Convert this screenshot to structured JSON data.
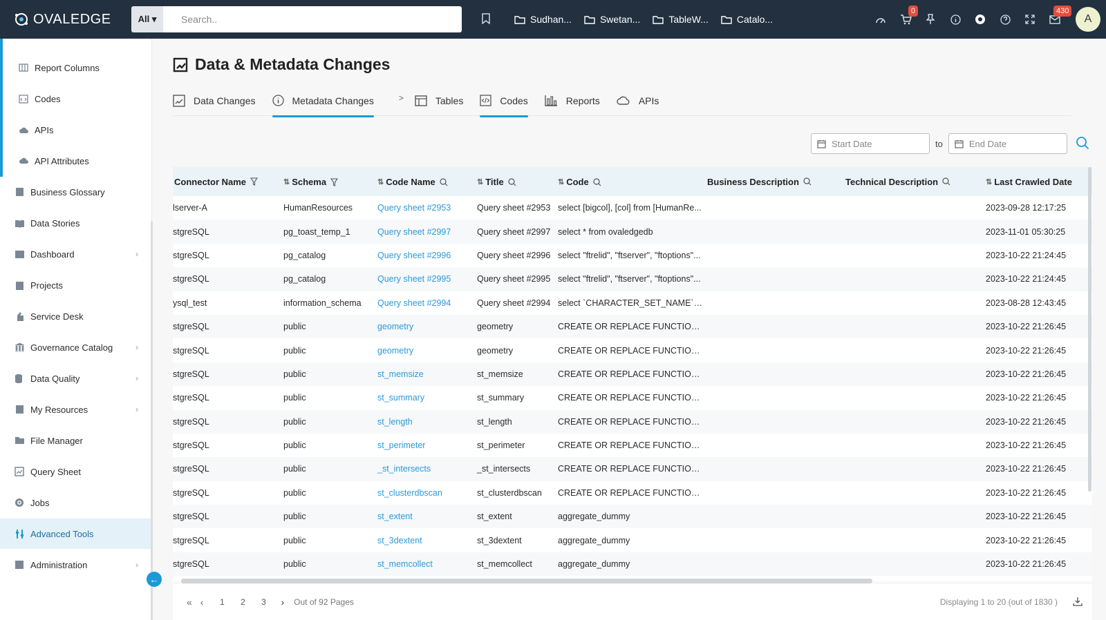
{
  "brand": {
    "name": "OVALEDGE"
  },
  "search": {
    "scope": "All ▾",
    "placeholder": "Search.."
  },
  "folders": [
    "Sudhan...",
    "Swetan...",
    "TableW...",
    "Catalo..."
  ],
  "top_badges": {
    "cart": "0",
    "mail": "430"
  },
  "user": {
    "initial": "A"
  },
  "sidebar": {
    "sub_items": [
      {
        "label": "Report Columns",
        "icon": "report-columns-icon"
      },
      {
        "label": "Codes",
        "icon": "codes-icon"
      },
      {
        "label": "APIs",
        "icon": "cloud-icon"
      },
      {
        "label": "API Attributes",
        "icon": "api-attributes-icon"
      }
    ],
    "items": [
      {
        "label": "Business Glossary",
        "icon": "glossary-icon",
        "chevron": false
      },
      {
        "label": "Data Stories",
        "icon": "book-icon",
        "chevron": false
      },
      {
        "label": "Dashboard",
        "icon": "dashboard-icon",
        "chevron": true
      },
      {
        "label": "Projects",
        "icon": "projects-icon",
        "chevron": false
      },
      {
        "label": "Service Desk",
        "icon": "service-desk-icon",
        "chevron": false
      },
      {
        "label": "Governance Catalog",
        "icon": "governance-icon",
        "chevron": true
      },
      {
        "label": "Data Quality",
        "icon": "data-quality-icon",
        "chevron": true
      },
      {
        "label": "My Resources",
        "icon": "resources-icon",
        "chevron": true
      },
      {
        "label": "File Manager",
        "icon": "folder-icon",
        "chevron": false
      },
      {
        "label": "Query Sheet",
        "icon": "query-sheet-icon",
        "chevron": false
      },
      {
        "label": "Jobs",
        "icon": "gear-icon",
        "chevron": false
      },
      {
        "label": "Advanced Tools",
        "icon": "tools-icon",
        "chevron": false
      },
      {
        "label": "Administration",
        "icon": "admin-icon",
        "chevron": true
      }
    ],
    "active": "Advanced Tools"
  },
  "page": {
    "title": "Data & Metadata Changes"
  },
  "tabs": [
    {
      "label": "Data Changes"
    },
    {
      "label": "Metadata Changes"
    },
    {
      "label": "Tables"
    },
    {
      "label": "Codes"
    },
    {
      "label": "Reports"
    },
    {
      "label": "APIs"
    }
  ],
  "date_filter": {
    "start_placeholder": "Start Date",
    "to": "to",
    "end_placeholder": "End Date"
  },
  "table": {
    "columns": [
      "Connector Name",
      "Schema",
      "Code Name",
      "Title",
      "Code",
      "Business Description",
      "Technical Description",
      "Last Crawled Date"
    ],
    "rows": [
      [
        "lserver-A",
        "HumanResources",
        "Query sheet #2953",
        "Query sheet #2953",
        "select [bigcol], [col] from [HumanRe...",
        "",
        "",
        "2023-09-28 12:17:25"
      ],
      [
        "stgreSQL",
        "pg_toast_temp_1",
        "Query sheet #2997",
        "Query sheet #2997",
        "select * from ovaledgedb",
        "",
        "",
        "2023-11-01 05:30:25"
      ],
      [
        "stgreSQL",
        "pg_catalog",
        "Query sheet #2996",
        "Query sheet #2996",
        "select \"ftrelid\", \"ftserver\", \"ftoptions\"...",
        "",
        "",
        "2023-10-22 21:24:45"
      ],
      [
        "stgreSQL",
        "pg_catalog",
        "Query sheet #2995",
        "Query sheet #2995",
        "select \"ftrelid\", \"ftserver\", \"ftoptions\"...",
        "",
        "",
        "2023-10-22 21:24:45"
      ],
      [
        "ysql_test",
        "information_schema",
        "Query sheet #2994",
        "Query sheet #2994",
        "select `CHARACTER_SET_NAME`, `...",
        "",
        "",
        "2023-08-28 12:43:45"
      ],
      [
        "stgreSQL",
        "public",
        "geometry",
        "geometry",
        "CREATE OR REPLACE FUNCTION p...",
        "",
        "",
        "2023-10-22 21:26:45"
      ],
      [
        "stgreSQL",
        "public",
        "geometry",
        "geometry",
        "CREATE OR REPLACE FUNCTION p...",
        "",
        "",
        "2023-10-22 21:26:45"
      ],
      [
        "stgreSQL",
        "public",
        "st_memsize",
        "st_memsize",
        "CREATE OR REPLACE FUNCTION p...",
        "",
        "",
        "2023-10-22 21:26:45"
      ],
      [
        "stgreSQL",
        "public",
        "st_summary",
        "st_summary",
        "CREATE OR REPLACE FUNCTION p...",
        "",
        "",
        "2023-10-22 21:26:45"
      ],
      [
        "stgreSQL",
        "public",
        "st_length",
        "st_length",
        "CREATE OR REPLACE FUNCTION p...",
        "",
        "",
        "2023-10-22 21:26:45"
      ],
      [
        "stgreSQL",
        "public",
        "st_perimeter",
        "st_perimeter",
        "CREATE OR REPLACE FUNCTION p...",
        "",
        "",
        "2023-10-22 21:26:45"
      ],
      [
        "stgreSQL",
        "public",
        "_st_intersects",
        "_st_intersects",
        "CREATE OR REPLACE FUNCTION p...",
        "",
        "",
        "2023-10-22 21:26:45"
      ],
      [
        "stgreSQL",
        "public",
        "st_clusterdbscan",
        "st_clusterdbscan",
        "CREATE OR REPLACE FUNCTION p...",
        "",
        "",
        "2023-10-22 21:26:45"
      ],
      [
        "stgreSQL",
        "public",
        "st_extent",
        "st_extent",
        "aggregate_dummy",
        "",
        "",
        "2023-10-22 21:26:45"
      ],
      [
        "stgreSQL",
        "public",
        "st_3dextent",
        "st_3dextent",
        "aggregate_dummy",
        "",
        "",
        "2023-10-22 21:26:45"
      ],
      [
        "stgreSQL",
        "public",
        "st_memcollect",
        "st_memcollect",
        "aggregate_dummy",
        "",
        "",
        "2023-10-22 21:26:45"
      ]
    ]
  },
  "pagination": {
    "pages": [
      "1",
      "2",
      "3"
    ],
    "out_of": "Out of 92 Pages",
    "display": "Displaying 1 to 20 (out of  1830 )"
  }
}
